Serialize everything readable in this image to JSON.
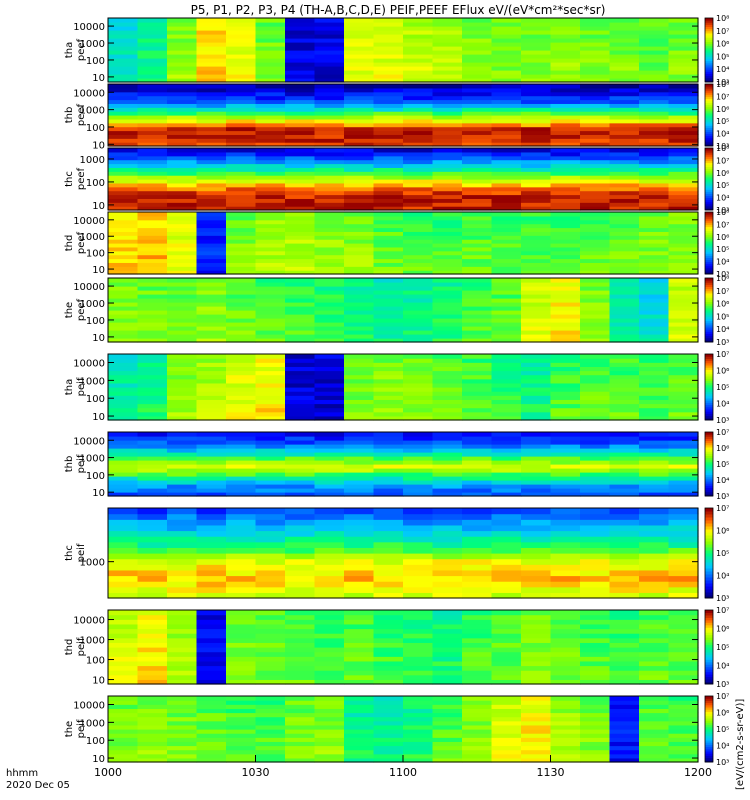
{
  "chart_data": {
    "type": "heatmap",
    "title": "P5, P1, P2, P3, P4 (TH-A,B,C,D,E) PEIF,PEEF EFlux eV/(eV*cm²*sec*sr)",
    "x_tick_labels": [
      "1000",
      "1030",
      "1100",
      "1130",
      "1200"
    ],
    "x_range_minutes": [
      0,
      120
    ],
    "x_ticks_minutes": [
      0,
      30,
      60,
      90,
      120
    ],
    "x_caption_lines": [
      "hhmm",
      "2020 Dec 05"
    ],
    "colorbar_label": "[eV/(cm2-s-sr-eV)]",
    "panels": [
      {
        "probe": "tha",
        "species": "peef",
        "label": [
          "tha",
          "peef"
        ],
        "ylim": [
          5,
          30000
        ],
        "yticks": [
          10,
          100,
          1000,
          10000
        ],
        "ytick_labels": [
          "10",
          "100",
          "1000",
          "10000"
        ],
        "clim_exp": [
          3,
          8
        ],
        "cbar_tick_labels": [
          "10³",
          "10⁴",
          "10⁵",
          "10⁶",
          "10⁷",
          "10⁸"
        ],
        "columns": [
          0.42,
          0.48,
          0.62,
          0.78,
          0.72,
          0.6,
          0.1,
          0.06,
          0.7,
          0.7,
          0.68,
          0.66,
          0.62,
          0.6,
          0.6,
          0.62,
          0.6,
          0.6,
          0.58,
          0.6
        ],
        "bands": [
          {
            "col": [
              6,
              7
            ],
            "value": 0.04
          }
        ]
      },
      {
        "probe": "thb",
        "species": "peef",
        "label": [
          "thb",
          "peef"
        ],
        "ylim": [
          8,
          30000
        ],
        "yticks": [
          10,
          100,
          1000,
          10000
        ],
        "ytick_labels": [
          "10",
          "100",
          "1000",
          "10000"
        ],
        "clim_exp": [
          3,
          8
        ],
        "cbar_tick_labels": [
          "10³",
          "10⁴",
          "10⁵",
          "10⁶",
          "10⁷",
          "10⁸"
        ],
        "profile": [
          {
            "f": 0.0,
            "v": 0.92
          },
          {
            "f": 0.12,
            "v": 0.95
          },
          {
            "f": 0.25,
            "v": 0.98
          },
          {
            "f": 0.38,
            "v": 0.78
          },
          {
            "f": 0.5,
            "v": 0.6
          },
          {
            "f": 0.62,
            "v": 0.4
          },
          {
            "f": 0.75,
            "v": 0.2
          },
          {
            "f": 0.88,
            "v": 0.12
          },
          {
            "f": 1.0,
            "v": 0.05
          }
        ]
      },
      {
        "probe": "thc",
        "species": "peef",
        "label": [
          "thc",
          "peef"
        ],
        "ylim": [
          6,
          3000
        ],
        "yticks": [
          10,
          100,
          1000
        ],
        "ytick_labels": [
          "10",
          "100",
          "1000"
        ],
        "clim_exp": [
          3,
          8
        ],
        "cbar_tick_labels": [
          "10³",
          "10⁴",
          "10⁵",
          "10⁶",
          "10⁷",
          "10⁸"
        ],
        "profile": [
          {
            "f": 0.0,
            "v": 0.95
          },
          {
            "f": 0.15,
            "v": 0.97
          },
          {
            "f": 0.3,
            "v": 0.9
          },
          {
            "f": 0.45,
            "v": 0.75
          },
          {
            "f": 0.6,
            "v": 0.55
          },
          {
            "f": 0.75,
            "v": 0.35
          },
          {
            "f": 0.9,
            "v": 0.18
          },
          {
            "f": 1.0,
            "v": 0.1
          }
        ]
      },
      {
        "probe": "thd",
        "species": "peef",
        "label": [
          "thd",
          "peef"
        ],
        "ylim": [
          5,
          30000
        ],
        "yticks": [
          10,
          100,
          1000,
          10000
        ],
        "ytick_labels": [
          "10",
          "100",
          "1000",
          "10000"
        ],
        "clim_exp": [
          3,
          8
        ],
        "cbar_tick_labels": [
          "10³",
          "10⁴",
          "10⁵",
          "10⁶",
          "10⁷",
          "10⁸"
        ],
        "columns": [
          0.76,
          0.8,
          0.72,
          0.3,
          0.6,
          0.65,
          0.66,
          0.63,
          0.62,
          0.58,
          0.56,
          0.55,
          0.57,
          0.56,
          0.55,
          0.56,
          0.57,
          0.58,
          0.6,
          0.62
        ],
        "bands": [
          {
            "col": [
              3,
              3
            ],
            "value": 0.1
          }
        ]
      },
      {
        "probe": "the",
        "species": "peef",
        "label": [
          "the",
          "peef"
        ],
        "ylim": [
          5,
          30000
        ],
        "yticks": [
          10,
          100,
          1000,
          10000
        ],
        "ytick_labels": [
          "10",
          "100",
          "1000",
          "10000"
        ],
        "clim_exp": [
          3,
          8
        ],
        "cbar_tick_labels": [
          "10³",
          "10⁴",
          "10⁵",
          "10⁶",
          "10⁷",
          "10⁸"
        ],
        "columns": [
          0.62,
          0.6,
          0.6,
          0.62,
          0.58,
          0.56,
          0.55,
          0.52,
          0.5,
          0.46,
          0.48,
          0.5,
          0.55,
          0.58,
          0.7,
          0.75,
          0.62,
          0.44,
          0.4,
          0.7
        ]
      },
      {
        "probe": "tha",
        "species": "peif",
        "label": [
          "tha",
          "peif"
        ],
        "ylim": [
          6,
          30000
        ],
        "yticks": [
          10,
          100,
          1000,
          10000
        ],
        "ytick_labels": [
          "10",
          "100",
          "1000",
          "10000"
        ],
        "clim_exp": [
          3,
          7
        ],
        "cbar_tick_labels": [
          "10³",
          "10⁴",
          "10⁵",
          "10⁶",
          "10⁷"
        ],
        "columns": [
          0.45,
          0.5,
          0.62,
          0.66,
          0.72,
          0.75,
          0.06,
          0.05,
          0.6,
          0.62,
          0.6,
          0.58,
          0.56,
          0.52,
          0.48,
          0.55,
          0.57,
          0.56,
          0.55,
          0.57
        ],
        "bands": [
          {
            "col": [
              6,
              7
            ],
            "value": 0.03
          }
        ]
      },
      {
        "probe": "thb",
        "species": "peif",
        "label": [
          "thb",
          "peif"
        ],
        "ylim": [
          6,
          30000
        ],
        "yticks": [
          10,
          100,
          1000,
          10000
        ],
        "ytick_labels": [
          "10",
          "100",
          "1000",
          "10000"
        ],
        "clim_exp": [
          3,
          7
        ],
        "cbar_tick_labels": [
          "10³",
          "10⁴",
          "10⁵",
          "10⁶",
          "10⁷"
        ],
        "profile": [
          {
            "f": 0.0,
            "v": 0.22
          },
          {
            "f": 0.15,
            "v": 0.3
          },
          {
            "f": 0.3,
            "v": 0.5
          },
          {
            "f": 0.45,
            "v": 0.72
          },
          {
            "f": 0.55,
            "v": 0.62
          },
          {
            "f": 0.7,
            "v": 0.4
          },
          {
            "f": 0.85,
            "v": 0.22
          },
          {
            "f": 1.0,
            "v": 0.12
          }
        ]
      },
      {
        "probe": "thc",
        "species": "peif",
        "label": [
          "thc",
          "peif"
        ],
        "ylim": [
          100,
          30000
        ],
        "yticks": [
          1000
        ],
        "ytick_labels": [
          "1000"
        ],
        "clim_exp": [
          3,
          7
        ],
        "cbar_tick_labels": [
          "10³",
          "10⁴",
          "10⁵",
          "10⁶",
          "10⁷"
        ],
        "profile": [
          {
            "f": 0.0,
            "v": 0.7
          },
          {
            "f": 0.2,
            "v": 0.8
          },
          {
            "f": 0.4,
            "v": 0.72
          },
          {
            "f": 0.6,
            "v": 0.5
          },
          {
            "f": 0.8,
            "v": 0.35
          },
          {
            "f": 1.0,
            "v": 0.2
          }
        ]
      },
      {
        "probe": "thd",
        "species": "peif",
        "label": [
          "thd",
          "peif"
        ],
        "ylim": [
          6,
          30000
        ],
        "yticks": [
          10,
          100,
          1000,
          10000
        ],
        "ytick_labels": [
          "10",
          "100",
          "1000",
          "10000"
        ],
        "clim_exp": [
          3,
          7
        ],
        "cbar_tick_labels": [
          "10³",
          "10⁴",
          "10⁵",
          "10⁶",
          "10⁷"
        ],
        "columns": [
          0.7,
          0.76,
          0.65,
          0.1,
          0.6,
          0.58,
          0.56,
          0.55,
          0.57,
          0.54,
          0.52,
          0.5,
          0.55,
          0.57,
          0.6,
          0.58,
          0.56,
          0.55,
          0.57,
          0.56
        ],
        "bands": [
          {
            "col": [
              3,
              3
            ],
            "value": 0.05
          }
        ]
      },
      {
        "probe": "the",
        "species": "peif",
        "label": [
          "the",
          "peif"
        ],
        "ylim": [
          6,
          30000
        ],
        "yticks": [
          10,
          100,
          1000,
          10000
        ],
        "ytick_labels": [
          "10",
          "100",
          "1000",
          "10000"
        ],
        "clim_exp": [
          3,
          7
        ],
        "cbar_tick_labels": [
          "10³",
          "10⁴",
          "10⁵",
          "10⁶",
          "10⁷"
        ],
        "columns": [
          0.6,
          0.62,
          0.6,
          0.58,
          0.56,
          0.55,
          0.6,
          0.62,
          0.48,
          0.46,
          0.5,
          0.56,
          0.62,
          0.7,
          0.75,
          0.65,
          0.6,
          0.15,
          0.58,
          0.56
        ],
        "bands": [
          {
            "col": [
              17,
              17
            ],
            "value": 0.08
          }
        ]
      }
    ]
  }
}
